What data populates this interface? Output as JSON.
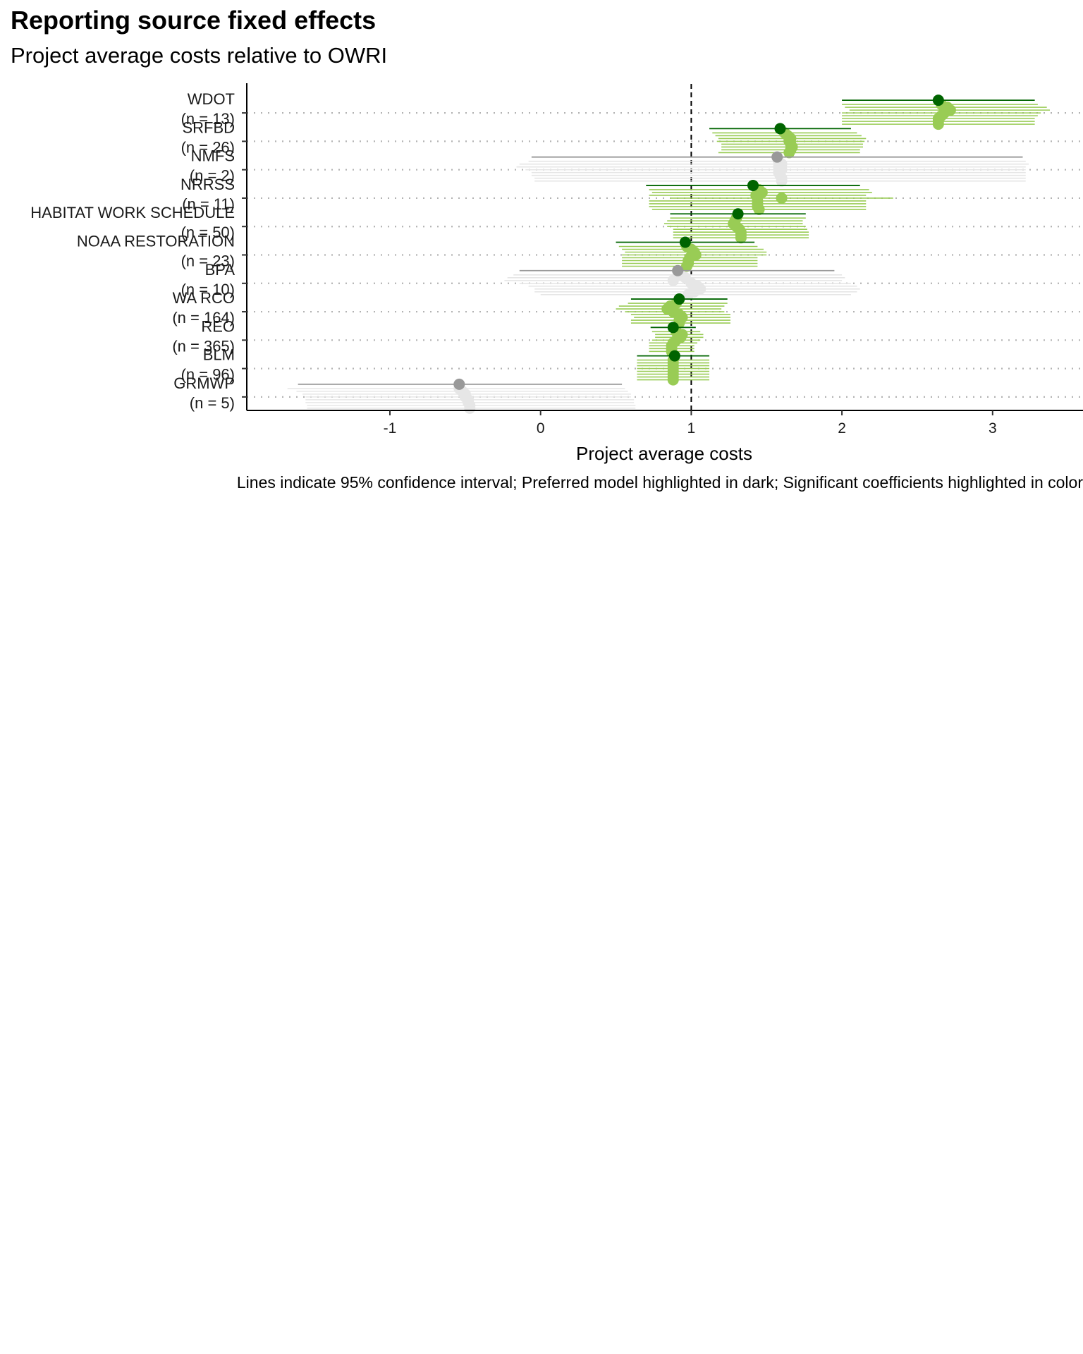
{
  "chart_data": {
    "type": "scatter",
    "title": "Reporting source fixed effects",
    "subtitle": "Project average costs relative to OWRI",
    "xlabel": "Project average costs",
    "ylabel": "",
    "caption": "Lines indicate 95% confidence interval; Preferred model highlighted in dark; Significant coefficients highlighted in color",
    "xlim": [
      -1.95,
      3.6
    ],
    "xticks": [
      -1,
      0,
      1,
      2,
      3
    ],
    "reference_line": 1,
    "grid": "horizontal dotted",
    "colors": {
      "preferred_significant": "#006400",
      "preferred_nonsignificant": "#999999",
      "alt_significant": "#99cc55",
      "alt_nonsignificant": "#e6e6e6"
    },
    "categories": [
      {
        "label": "WDOT",
        "n": "(n = 13)",
        "significant": true,
        "preferred": {
          "est": 2.64,
          "lo": 2.0,
          "hi": 3.28
        },
        "alternatives": [
          {
            "est": 2.66,
            "lo": 2.0,
            "hi": 3.3
          },
          {
            "est": 2.7,
            "lo": 2.02,
            "hi": 3.36
          },
          {
            "est": 2.72,
            "lo": 2.05,
            "hi": 3.38
          },
          {
            "est": 2.68,
            "lo": 2.0,
            "hi": 3.32
          },
          {
            "est": 2.66,
            "lo": 2.0,
            "hi": 3.3
          },
          {
            "est": 2.64,
            "lo": 2.0,
            "hi": 3.28
          },
          {
            "est": 2.64,
            "lo": 2.0,
            "hi": 3.28
          },
          {
            "est": 2.64,
            "lo": 2.0,
            "hi": 3.28
          }
        ]
      },
      {
        "label": "SRFBD",
        "n": "(n = 26)",
        "significant": true,
        "preferred": {
          "est": 1.59,
          "lo": 1.12,
          "hi": 2.06
        },
        "alternatives": [
          {
            "est": 1.62,
            "lo": 1.14,
            "hi": 2.1
          },
          {
            "est": 1.64,
            "lo": 1.16,
            "hi": 2.13
          },
          {
            "est": 1.66,
            "lo": 1.18,
            "hi": 2.16
          },
          {
            "est": 1.65,
            "lo": 1.17,
            "hi": 2.15
          },
          {
            "est": 1.66,
            "lo": 1.2,
            "hi": 2.14
          },
          {
            "est": 1.67,
            "lo": 1.2,
            "hi": 2.14
          },
          {
            "est": 1.66,
            "lo": 1.2,
            "hi": 2.12
          },
          {
            "est": 1.65,
            "lo": 1.18,
            "hi": 2.12
          }
        ]
      },
      {
        "label": "NMFS",
        "n": "(n = 2)",
        "significant": false,
        "preferred": {
          "est": 1.57,
          "lo": -0.06,
          "hi": 3.2
        },
        "alternatives": [
          {
            "est": 1.58,
            "lo": -0.08,
            "hi": 3.22
          },
          {
            "est": 1.6,
            "lo": -0.14,
            "hi": 3.24
          },
          {
            "est": 1.58,
            "lo": -0.16,
            "hi": 3.22
          },
          {
            "est": 1.6,
            "lo": -0.1,
            "hi": 3.22
          },
          {
            "est": 1.58,
            "lo": -0.06,
            "hi": 3.22
          },
          {
            "est": 1.59,
            "lo": -0.06,
            "hi": 3.22
          },
          {
            "est": 1.6,
            "lo": -0.04,
            "hi": 3.22
          },
          {
            "est": 1.6,
            "lo": -0.04,
            "hi": 3.22
          }
        ]
      },
      {
        "label": "NRRSS",
        "n": "(n = 11)",
        "significant": true,
        "preferred": {
          "est": 1.41,
          "lo": 0.7,
          "hi": 2.12
        },
        "alternatives": [
          {
            "est": 1.45,
            "lo": 0.72,
            "hi": 2.18
          },
          {
            "est": 1.47,
            "lo": 0.74,
            "hi": 2.2
          },
          {
            "est": 1.43,
            "lo": 0.72,
            "hi": 2.16
          },
          {
            "est": 1.6,
            "lo": 0.86,
            "hi": 2.34
          },
          {
            "est": 1.44,
            "lo": 0.72,
            "hi": 2.16
          },
          {
            "est": 1.44,
            "lo": 0.72,
            "hi": 2.16
          },
          {
            "est": 1.44,
            "lo": 0.72,
            "hi": 2.16
          },
          {
            "est": 1.45,
            "lo": 0.74,
            "hi": 2.16
          }
        ]
      },
      {
        "label": "HABITAT WORK SCHEDULE",
        "n": "(n = 50)",
        "significant": true,
        "preferred": {
          "est": 1.31,
          "lo": 0.86,
          "hi": 1.76
        },
        "alternatives": [
          {
            "est": 1.3,
            "lo": 0.86,
            "hi": 1.76
          },
          {
            "est": 1.29,
            "lo": 0.84,
            "hi": 1.74
          },
          {
            "est": 1.28,
            "lo": 0.82,
            "hi": 1.74
          },
          {
            "est": 1.3,
            "lo": 0.84,
            "hi": 1.76
          },
          {
            "est": 1.32,
            "lo": 0.88,
            "hi": 1.77
          },
          {
            "est": 1.33,
            "lo": 0.88,
            "hi": 1.78
          },
          {
            "est": 1.33,
            "lo": 0.88,
            "hi": 1.78
          },
          {
            "est": 1.33,
            "lo": 0.88,
            "hi": 1.78
          }
        ]
      },
      {
        "label": "NOAA RESTORATION",
        "n": "(n = 23)",
        "significant": true,
        "preferred": {
          "est": 0.96,
          "lo": 0.5,
          "hi": 1.42
        },
        "alternatives": [
          {
            "est": 0.97,
            "lo": 0.52,
            "hi": 1.44
          },
          {
            "est": 1.0,
            "lo": 0.54,
            "hi": 1.48
          },
          {
            "est": 1.02,
            "lo": 0.56,
            "hi": 1.5
          },
          {
            "est": 1.03,
            "lo": 0.54,
            "hi": 1.5
          },
          {
            "est": 0.99,
            "lo": 0.54,
            "hi": 1.44
          },
          {
            "est": 0.98,
            "lo": 0.54,
            "hi": 1.44
          },
          {
            "est": 0.98,
            "lo": 0.54,
            "hi": 1.44
          },
          {
            "est": 0.97,
            "lo": 0.54,
            "hi": 1.44
          }
        ]
      },
      {
        "label": "BPA",
        "n": "(n = 10)",
        "significant": false,
        "preferred": {
          "est": 0.91,
          "lo": -0.14,
          "hi": 1.95
        },
        "alternatives": [
          {
            "est": 0.92,
            "lo": -0.18,
            "hi": 2.0
          },
          {
            "est": 0.96,
            "lo": -0.22,
            "hi": 2.02
          },
          {
            "est": 0.88,
            "lo": -0.24,
            "hi": 2.0
          },
          {
            "est": 1.0,
            "lo": -0.14,
            "hi": 2.06
          },
          {
            "est": 1.04,
            "lo": -0.08,
            "hi": 2.1
          },
          {
            "est": 1.06,
            "lo": -0.04,
            "hi": 2.12
          },
          {
            "est": 1.02,
            "lo": -0.04,
            "hi": 2.1
          },
          {
            "est": 0.98,
            "lo": 0.0,
            "hi": 2.06
          }
        ]
      },
      {
        "label": "WA RCO",
        "n": "(n = 164)",
        "significant": true,
        "preferred": {
          "est": 0.92,
          "lo": 0.6,
          "hi": 1.24
        },
        "alternatives": [
          {
            "est": 0.9,
            "lo": 0.58,
            "hi": 1.24
          },
          {
            "est": 0.86,
            "lo": 0.52,
            "hi": 1.22
          },
          {
            "est": 0.84,
            "lo": 0.5,
            "hi": 1.2
          },
          {
            "est": 0.88,
            "lo": 0.56,
            "hi": 1.22
          },
          {
            "est": 0.92,
            "lo": 0.6,
            "hi": 1.26
          },
          {
            "est": 0.94,
            "lo": 0.62,
            "hi": 1.26
          },
          {
            "est": 0.92,
            "lo": 0.6,
            "hi": 1.26
          },
          {
            "est": 0.92,
            "lo": 0.6,
            "hi": 1.26
          }
        ]
      },
      {
        "label": "REO",
        "n": "(n = 365)",
        "significant": true,
        "preferred": {
          "est": 0.88,
          "lo": 0.73,
          "hi": 1.03
        },
        "alternatives": [
          {
            "est": 0.9,
            "lo": 0.74,
            "hi": 1.06
          },
          {
            "est": 0.94,
            "lo": 0.76,
            "hi": 1.08
          },
          {
            "est": 0.93,
            "lo": 0.76,
            "hi": 1.08
          },
          {
            "est": 0.9,
            "lo": 0.74,
            "hi": 1.06
          },
          {
            "est": 0.88,
            "lo": 0.72,
            "hi": 1.04
          },
          {
            "est": 0.87,
            "lo": 0.72,
            "hi": 1.02
          },
          {
            "est": 0.87,
            "lo": 0.72,
            "hi": 1.02
          },
          {
            "est": 0.87,
            "lo": 0.72,
            "hi": 1.02
          }
        ]
      },
      {
        "label": "BLM",
        "n": "(n = 96)",
        "significant": true,
        "preferred": {
          "est": 0.89,
          "lo": 0.64,
          "hi": 1.12
        },
        "alternatives": [
          {
            "est": 0.88,
            "lo": 0.64,
            "hi": 1.12
          },
          {
            "est": 0.88,
            "lo": 0.64,
            "hi": 1.12
          },
          {
            "est": 0.88,
            "lo": 0.64,
            "hi": 1.12
          },
          {
            "est": 0.88,
            "lo": 0.64,
            "hi": 1.12
          },
          {
            "est": 0.88,
            "lo": 0.64,
            "hi": 1.12
          },
          {
            "est": 0.88,
            "lo": 0.64,
            "hi": 1.12
          },
          {
            "est": 0.88,
            "lo": 0.64,
            "hi": 1.12
          },
          {
            "est": 0.88,
            "lo": 0.64,
            "hi": 1.12
          }
        ]
      },
      {
        "label": "GRMWP",
        "n": "(n = 5)",
        "significant": false,
        "preferred": {
          "est": -0.54,
          "lo": -1.61,
          "hi": 0.54
        },
        "alternatives": [
          {
            "est": -0.54,
            "lo": -1.68,
            "hi": 0.56
          },
          {
            "est": -0.52,
            "lo": -1.62,
            "hi": 0.58
          },
          {
            "est": -0.5,
            "lo": -1.58,
            "hi": 0.6
          },
          {
            "est": -0.5,
            "lo": -1.56,
            "hi": 0.6
          },
          {
            "est": -0.48,
            "lo": -1.56,
            "hi": 0.62
          },
          {
            "est": -0.48,
            "lo": -1.56,
            "hi": 0.62
          },
          {
            "est": -0.47,
            "lo": -1.55,
            "hi": 0.63
          },
          {
            "est": -0.47,
            "lo": -1.55,
            "hi": 0.63
          }
        ]
      }
    ]
  }
}
